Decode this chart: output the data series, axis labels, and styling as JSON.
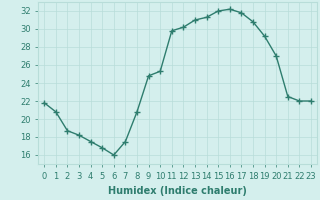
{
  "x": [
    0,
    1,
    2,
    3,
    4,
    5,
    6,
    7,
    8,
    9,
    10,
    11,
    12,
    13,
    14,
    15,
    16,
    17,
    18,
    19,
    20,
    21,
    22,
    23
  ],
  "y": [
    21.8,
    20.8,
    18.7,
    18.2,
    17.5,
    16.8,
    16.0,
    17.5,
    20.8,
    24.8,
    25.3,
    29.8,
    30.2,
    31.0,
    31.3,
    32.0,
    32.2,
    31.8,
    30.8,
    29.2,
    27.0,
    22.5,
    22.0,
    22.0
  ],
  "line_color": "#2e7d6e",
  "marker": "+",
  "marker_size": 4,
  "marker_lw": 1.0,
  "bg_color": "#d4efed",
  "grid_color": "#b8ddd9",
  "xlabel": "Humidex (Indice chaleur)",
  "ylim": [
    15.0,
    33.0
  ],
  "xlim": [
    -0.5,
    23.5
  ],
  "yticks": [
    16,
    18,
    20,
    22,
    24,
    26,
    28,
    30,
    32
  ],
  "xticks": [
    0,
    1,
    2,
    3,
    4,
    5,
    6,
    7,
    8,
    9,
    10,
    11,
    12,
    13,
    14,
    15,
    16,
    17,
    18,
    19,
    20,
    21,
    22,
    23
  ],
  "xlabel_fontsize": 7,
  "tick_fontsize": 6,
  "line_width": 1.0
}
